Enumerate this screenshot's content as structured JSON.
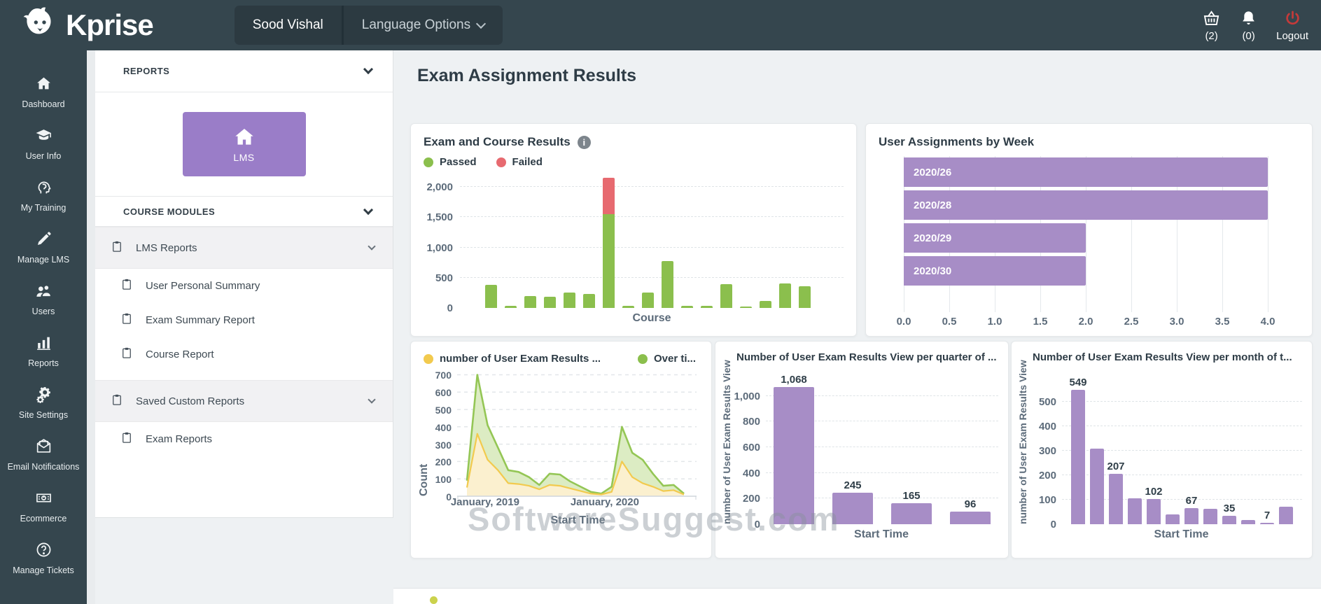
{
  "header": {
    "brand": "Kprise",
    "user_button": "Sood Vishal",
    "language_button": "Language Options",
    "cart_count": "(2)",
    "notifications_count": "(0)",
    "logout_label": "Logout",
    "logout_color": "#c43a3a"
  },
  "sidebar": {
    "items": [
      {
        "label": "Dashboard",
        "icon": "home-icon"
      },
      {
        "label": "User Info",
        "icon": "graduation-cap-icon"
      },
      {
        "label": "My Training",
        "icon": "training-head-icon"
      },
      {
        "label": "Manage LMS",
        "icon": "pencil-icon"
      },
      {
        "label": "Users",
        "icon": "users-icon"
      },
      {
        "label": "Reports",
        "icon": "bar-chart-icon"
      },
      {
        "label": "Site Settings",
        "icon": "gear-icon"
      },
      {
        "label": "Email Notifications",
        "icon": "email-icon"
      },
      {
        "label": "Ecommerce",
        "icon": "money-icon"
      },
      {
        "label": "Manage Tickets",
        "icon": "help-icon"
      }
    ]
  },
  "reports_panel": {
    "reports_header": "REPORTS",
    "lms_tile_label": "LMS",
    "course_modules_header": "COURSE MODULES",
    "tree": [
      {
        "label": "LMS Reports",
        "type": "group",
        "chevron": true
      },
      {
        "label": "User Personal Summary",
        "type": "child"
      },
      {
        "label": "Exam Summary Report",
        "type": "child"
      },
      {
        "label": "Course Report",
        "type": "child"
      },
      {
        "label": "Saved Custom Reports",
        "type": "group",
        "chevron": true
      },
      {
        "label": "Exam Reports",
        "type": "child"
      }
    ]
  },
  "main": {
    "page_title": "Exam Assignment Results",
    "watermark": "SoftwareSuggest.com"
  },
  "colors": {
    "topbar": "#35464e",
    "accent_purple": "#a78dc6",
    "passed_green": "#8bbf4d",
    "failed_red": "#e76a70",
    "line_yellow": "#f2ca4e"
  },
  "chart_data": [
    {
      "type": "bar",
      "stacked": true,
      "title": "Exam and Course Results",
      "legend": [
        "Passed",
        "Failed"
      ],
      "xlabel": "Course",
      "ylim": [
        0,
        2150
      ],
      "y_ticks": [
        "0",
        "500",
        "1,000",
        "1,500",
        "2,000"
      ],
      "y_tick_values": [
        0,
        500,
        1000,
        1500,
        2000
      ],
      "grid": "dashed",
      "series": [
        {
          "name": "Passed",
          "color": "#8bbf4d",
          "values": [
            380,
            40,
            200,
            185,
            255,
            235,
            1550,
            30,
            250,
            780,
            40,
            40,
            390,
            25,
            110,
            400,
            355
          ]
        },
        {
          "name": "Failed",
          "color": "#e76a70",
          "values": [
            0,
            0,
            0,
            0,
            0,
            0,
            600,
            0,
            0,
            0,
            0,
            0,
            0,
            0,
            0,
            0,
            0
          ]
        }
      ]
    },
    {
      "type": "hbar",
      "title": "User Assignments by Week",
      "categories": [
        "2020/26",
        "2020/28",
        "2020/29",
        "2020/30"
      ],
      "values": [
        4,
        4,
        2,
        2
      ],
      "xlim": [
        0,
        4
      ],
      "x_ticks": [
        "0.0",
        "0.5",
        "1.0",
        "1.5",
        "2.0",
        "2.5",
        "3.0",
        "3.5",
        "4.0"
      ],
      "color": "#a78dc6"
    },
    {
      "type": "area",
      "legend": [
        "number of User Exam Results ...",
        "Over ti..."
      ],
      "ylabel": "Count",
      "xlabel": "Start Time",
      "ylim": [
        0,
        710
      ],
      "y_ticks": [
        "0",
        "100",
        "200",
        "300",
        "400",
        "500",
        "600",
        "700"
      ],
      "y_tick_values": [
        0,
        100,
        200,
        300,
        400,
        500,
        600,
        700
      ],
      "x_tick_labels": [
        "January, 2019",
        "January, 2020"
      ],
      "x_tick_positions": [
        0.14,
        0.64
      ],
      "series": [
        {
          "name": "Over ti...",
          "color": "#94c655",
          "fill": "#dcecc3",
          "values": [
            90,
            700,
            410,
            280,
            150,
            140,
            110,
            65,
            130,
            125,
            85,
            55,
            25,
            15,
            55,
            400,
            250,
            210,
            130,
            60,
            65,
            15
          ]
        },
        {
          "name": "number of User Exam Results ...",
          "color": "#f2ca4e",
          "fill": "#fbf0cf",
          "values": [
            50,
            360,
            210,
            150,
            75,
            70,
            60,
            40,
            65,
            60,
            45,
            30,
            15,
            10,
            25,
            200,
            110,
            75,
            55,
            30,
            35,
            10
          ]
        }
      ]
    },
    {
      "type": "bar",
      "title": "Number of User Exam Results View per quarter of ...",
      "ylabel": "number of User Exam Results View",
      "xlabel": "Start Time",
      "ylim": [
        0,
        1090
      ],
      "y_ticks": [
        "0",
        "200",
        "400",
        "600",
        "800",
        "1,000"
      ],
      "y_tick_values": [
        0,
        200,
        400,
        600,
        800,
        1000
      ],
      "values": [
        1068,
        245,
        165,
        96
      ],
      "bar_labels": [
        "1,068",
        "245",
        "165",
        "96"
      ],
      "color": "#a78dc6"
    },
    {
      "type": "bar",
      "title": "Number of User Exam Results View per month of t...",
      "ylabel": "number of User Exam Results View",
      "xlabel": "Start Time",
      "ylim": [
        0,
        560
      ],
      "y_ticks": [
        "0",
        "100",
        "200",
        "300",
        "400",
        "500"
      ],
      "y_tick_values": [
        0,
        100,
        200,
        300,
        400,
        500
      ],
      "values": [
        549,
        310,
        207,
        105,
        102,
        40,
        67,
        62,
        35,
        18,
        7,
        72
      ],
      "bar_labels": [
        "549",
        null,
        "207",
        null,
        "102",
        null,
        "67",
        null,
        "35",
        null,
        "7",
        null
      ],
      "color": "#a78dc6"
    }
  ]
}
